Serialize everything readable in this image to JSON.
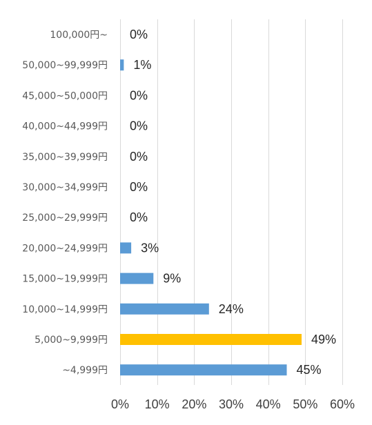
{
  "chart_data": {
    "type": "bar",
    "orientation": "horizontal",
    "title": "",
    "xlabel": "",
    "ylabel": "",
    "categories": [
      "100,000円~",
      "50,000~99,999円",
      "45,000~50,000円",
      "40,000~44,999円",
      "35,000~39,999円",
      "30,000~34,999円",
      "25,000~29,999円",
      "20,000~24,999円",
      "15,000~19,999円",
      "10,000~14,999円",
      "5,000~9,999円",
      "~4,999円"
    ],
    "values": [
      0,
      1,
      0,
      0,
      0,
      0,
      0,
      3,
      9,
      24,
      49,
      45
    ],
    "data_labels": [
      "0%",
      "1%",
      "0%",
      "0%",
      "0%",
      "0%",
      "0%",
      "3%",
      "9%",
      "24%",
      "49%",
      "45%"
    ],
    "xlim": [
      0,
      60
    ],
    "xticks": [
      0,
      10,
      20,
      30,
      40,
      50,
      60
    ],
    "xtick_labels": [
      "0%",
      "10%",
      "20%",
      "30%",
      "40%",
      "50%",
      "60%"
    ],
    "grid": true,
    "legend": "none",
    "colors": {
      "default_bar": "#5b9bd5",
      "highlight_bar": "#ffc000",
      "gridline": "#d9d9d9"
    },
    "highlight_category": "5,000~9,999円"
  }
}
